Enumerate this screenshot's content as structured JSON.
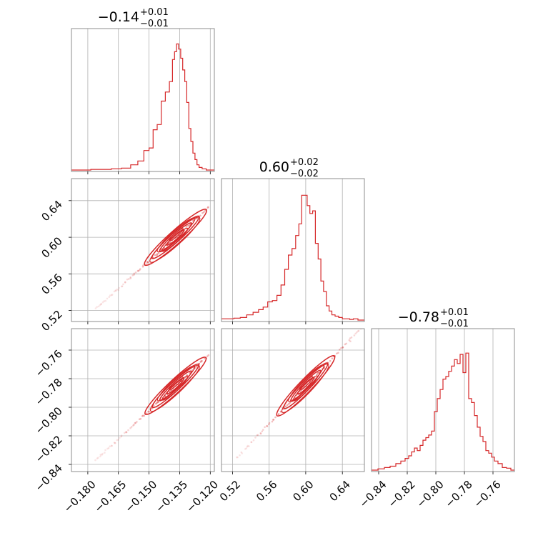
{
  "chart_data": {
    "type": "corner",
    "color": "#d62728",
    "grid": true,
    "parameters": [
      {
        "title": "−0.14",
        "title_plus": "+0.01",
        "title_minus": "−0.01",
        "range": [
          -0.188,
          -0.118
        ],
        "ticks": [
          -0.18,
          -0.165,
          -0.15,
          -0.135,
          -0.12
        ],
        "tick_labels": [
          "−0.180",
          "−0.165",
          "−0.150",
          "−0.135",
          "−0.120"
        ],
        "histogram": {
          "x": [
            -0.186,
            -0.181,
            -0.176,
            -0.171,
            -0.166,
            -0.161,
            -0.157,
            -0.154,
            -0.151,
            -0.149,
            -0.147,
            -0.145,
            -0.143,
            -0.141,
            -0.139,
            -0.138,
            -0.137,
            -0.136,
            -0.135,
            -0.134,
            -0.133,
            -0.132,
            -0.131,
            -0.13,
            -0.129,
            -0.128,
            -0.127,
            -0.126,
            -0.125,
            -0.123,
            -0.121,
            -0.119
          ],
          "counts": [
            0.0,
            0.0,
            0.005,
            0.005,
            0.01,
            0.015,
            0.04,
            0.07,
            0.15,
            0.17,
            0.31,
            0.35,
            0.53,
            0.6,
            0.68,
            0.85,
            0.91,
            0.97,
            0.93,
            0.86,
            0.77,
            0.68,
            0.52,
            0.32,
            0.22,
            0.13,
            0.08,
            0.04,
            0.02,
            0.01,
            0.0,
            0.0
          ]
        }
      },
      {
        "title": "0.60",
        "title_plus": "+0.02",
        "title_minus": "−0.02",
        "range": [
          0.508,
          0.664
        ],
        "ticks": [
          0.52,
          0.56,
          0.6,
          0.64
        ],
        "tick_labels": [
          "0.52",
          "0.56",
          "0.60",
          "0.64"
        ],
        "histogram": {
          "x": [
            0.511,
            0.518,
            0.525,
            0.532,
            0.539,
            0.546,
            0.551,
            0.556,
            0.561,
            0.566,
            0.571,
            0.575,
            0.579,
            0.583,
            0.587,
            0.591,
            0.594,
            0.597,
            0.6,
            0.603,
            0.606,
            0.609,
            0.612,
            0.615,
            0.618,
            0.621,
            0.624,
            0.627,
            0.63,
            0.634,
            0.638,
            0.642,
            0.646,
            0.65,
            0.654,
            0.66
          ],
          "counts": [
            0.01,
            0.01,
            0.015,
            0.02,
            0.04,
            0.06,
            0.08,
            0.1,
            0.14,
            0.15,
            0.19,
            0.27,
            0.39,
            0.5,
            0.55,
            0.65,
            0.74,
            0.96,
            0.96,
            0.88,
            0.82,
            0.84,
            0.59,
            0.47,
            0.3,
            0.22,
            0.11,
            0.07,
            0.04,
            0.03,
            0.02,
            0.01,
            0.01,
            0.005,
            0.01,
            0.0
          ]
        }
      },
      {
        "title": "−0.78",
        "title_plus": "+0.01",
        "title_minus": "−0.01",
        "range": [
          -0.845,
          -0.745
        ],
        "ticks": [
          -0.84,
          -0.82,
          -0.8,
          -0.78,
          -0.76
        ],
        "tick_labels": [
          "−0.84",
          "−0.82",
          "−0.80",
          "−0.78",
          "−0.76"
        ],
        "histogram": {
          "x": [
            -0.843,
            -0.838,
            -0.834,
            -0.83,
            -0.826,
            -0.823,
            -0.82,
            -0.818,
            -0.816,
            -0.814,
            -0.812,
            -0.81,
            -0.808,
            -0.806,
            -0.804,
            -0.802,
            -0.8,
            -0.798,
            -0.796,
            -0.794,
            -0.792,
            -0.79,
            -0.788,
            -0.786,
            -0.784,
            -0.782,
            -0.78,
            -0.778,
            -0.776,
            -0.774,
            -0.772,
            -0.77,
            -0.768,
            -0.766,
            -0.764,
            -0.762,
            -0.76,
            -0.758,
            -0.755,
            -0.752,
            -0.749,
            -0.746
          ],
          "counts": [
            0.0,
            0.01,
            0.02,
            0.03,
            0.05,
            0.07,
            0.09,
            0.11,
            0.14,
            0.17,
            0.15,
            0.19,
            0.23,
            0.25,
            0.27,
            0.3,
            0.45,
            0.55,
            0.62,
            0.7,
            0.72,
            0.76,
            0.8,
            0.85,
            0.82,
            0.89,
            0.75,
            0.9,
            0.55,
            0.52,
            0.42,
            0.33,
            0.26,
            0.22,
            0.15,
            0.13,
            0.1,
            0.07,
            0.05,
            0.02,
            0.015,
            0.0
          ]
        }
      }
    ],
    "correlations": [
      {
        "row": 1,
        "col": 0,
        "slope": 2.0,
        "scatter_span": [
          -0.176,
          -0.121
        ]
      },
      {
        "row": 2,
        "col": 0,
        "slope": 1.333,
        "scatter_span": [
          -0.176,
          -0.121
        ]
      },
      {
        "row": 2,
        "col": 1,
        "slope": 0.667,
        "scatter_span": [
          0.525,
          0.66
        ]
      }
    ]
  }
}
